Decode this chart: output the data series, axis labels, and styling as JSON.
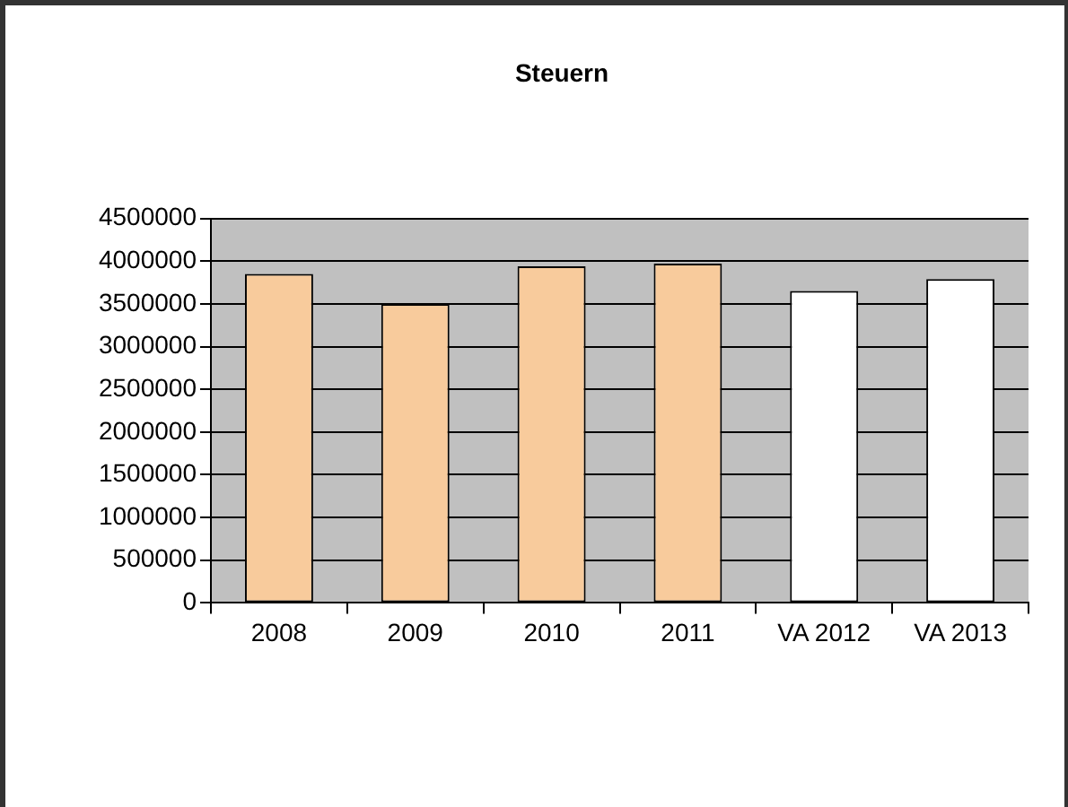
{
  "chart_data": {
    "type": "bar",
    "title": "Steuern",
    "categories": [
      "2008",
      "2009",
      "2010",
      "2011",
      "VA 2012",
      "VA 2013"
    ],
    "values": [
      3850000,
      3500000,
      3940000,
      3970000,
      3650000,
      3790000
    ],
    "colors": [
      "#f8cb9c",
      "#f8cb9c",
      "#f8cb9c",
      "#f8cb9c",
      "#ffffff",
      "#ffffff"
    ],
    "ylim": [
      0,
      4500000
    ],
    "yticks": [
      0,
      500000,
      1000000,
      1500000,
      2000000,
      2500000,
      3000000,
      3500000,
      4000000,
      4500000
    ],
    "grid": "y",
    "legend": false
  }
}
